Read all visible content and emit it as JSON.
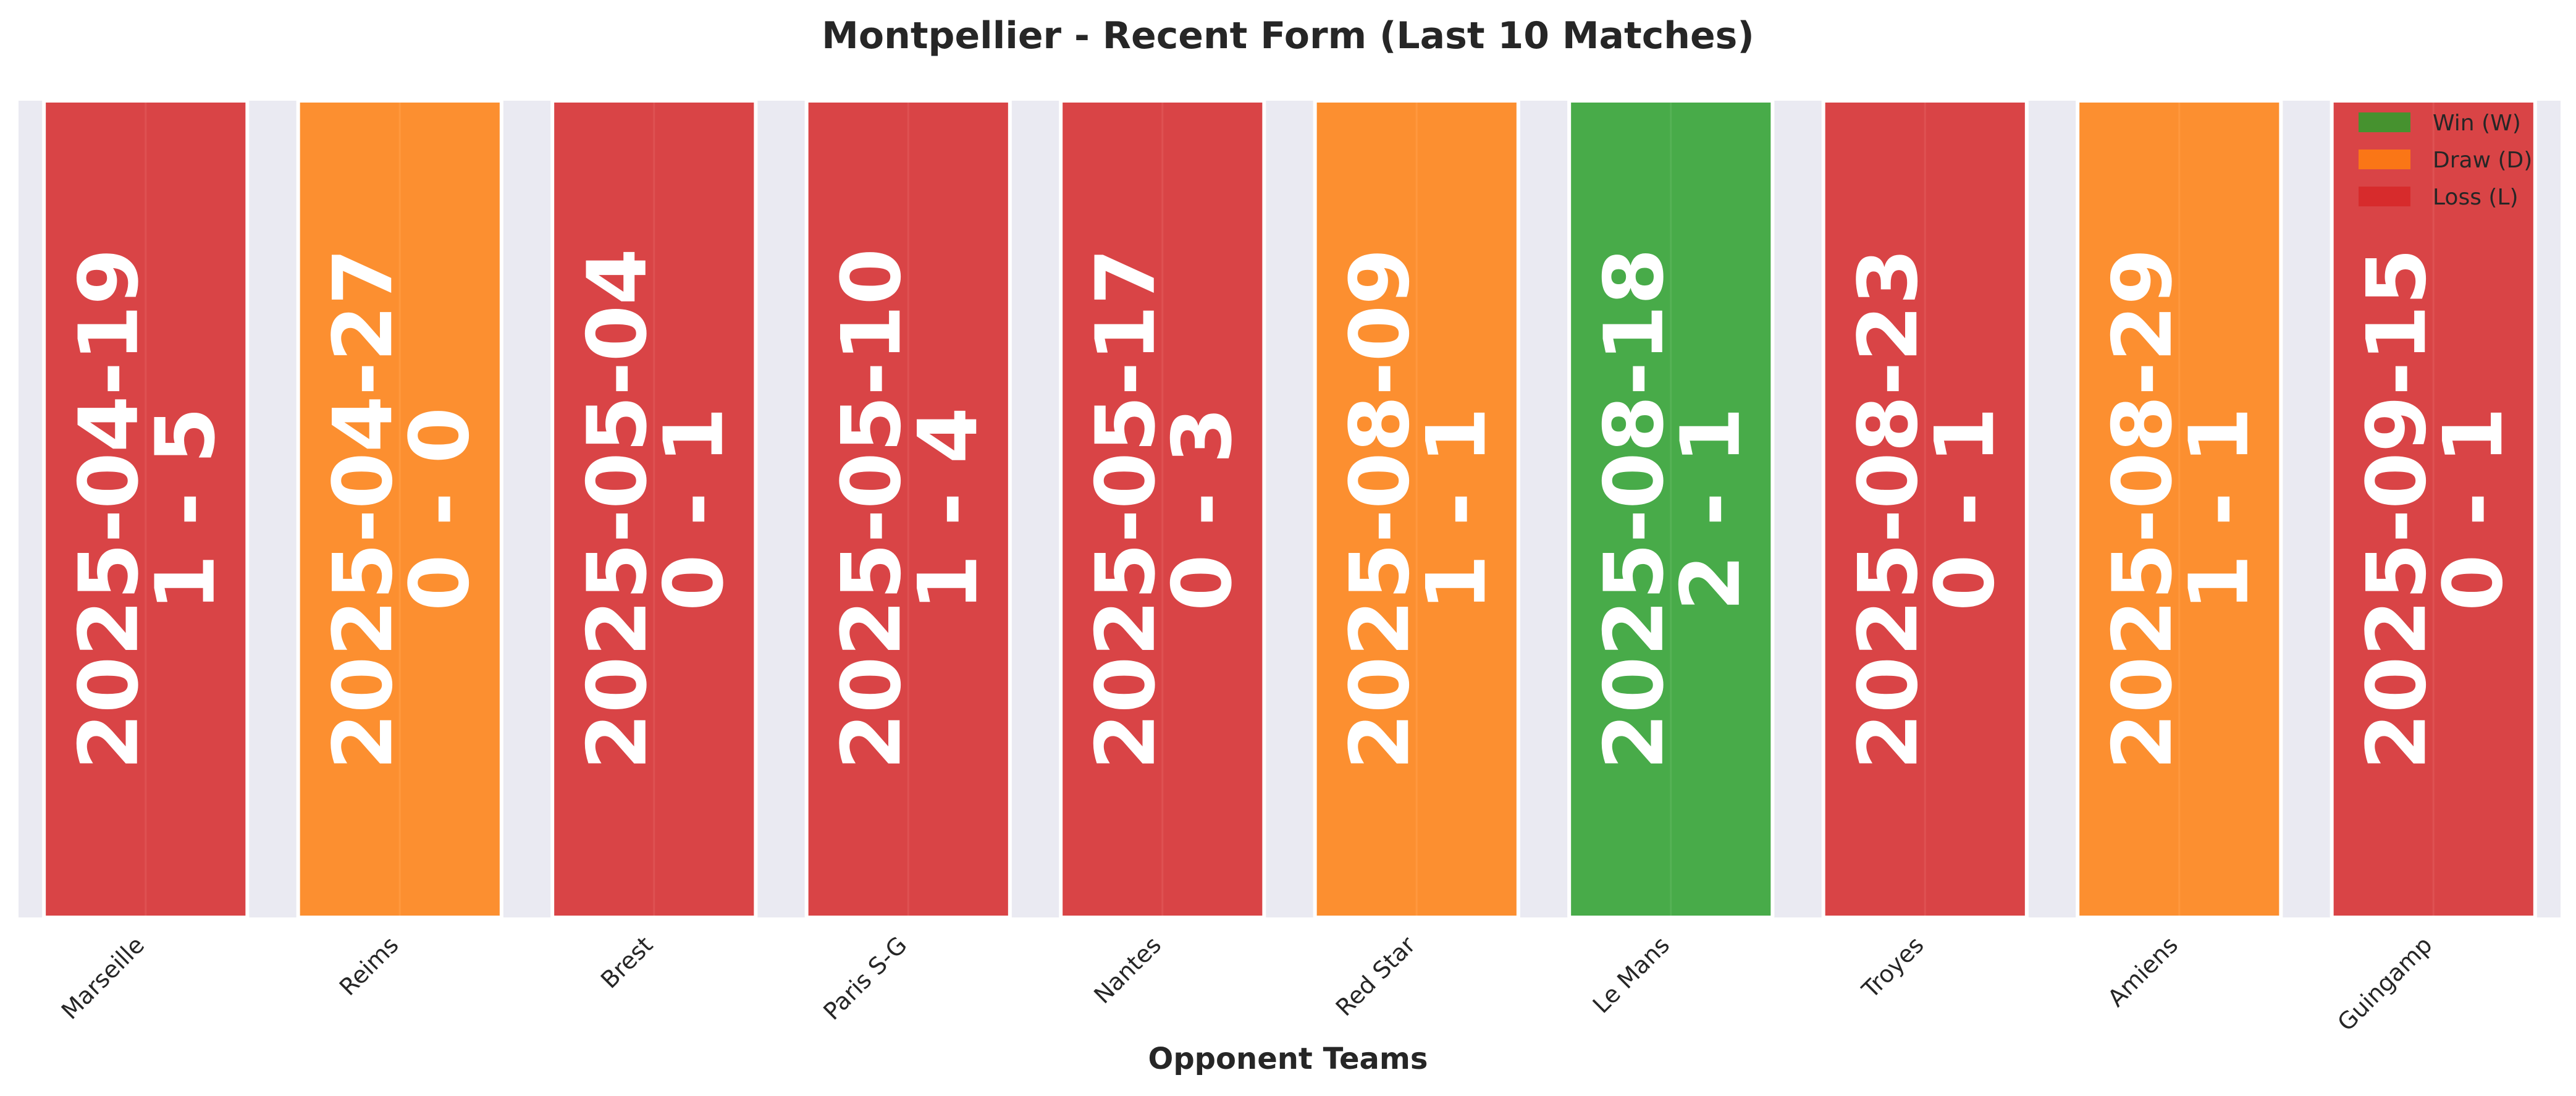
{
  "chart_data": {
    "type": "bar",
    "title": "Montpellier - Recent Form (Last 10 Matches)",
    "xlabel": "Opponent Teams",
    "ylabel": "",
    "ylim": [
      0,
      1
    ],
    "grid": true,
    "legend_position": "top-right",
    "categories": [
      "Marseille",
      "Reims",
      "Brest",
      "Paris S-G",
      "Nantes",
      "Red Star",
      "Le Mans",
      "Troyes",
      "Amiens",
      "Guingamp"
    ],
    "values": [
      1,
      1,
      1,
      1,
      1,
      1,
      1,
      1,
      1,
      1
    ],
    "results": [
      "L",
      "D",
      "L",
      "L",
      "L",
      "D",
      "W",
      "L",
      "D",
      "L"
    ],
    "dates": [
      "2025-04-19",
      "2025-04-27",
      "2025-05-04",
      "2025-05-10",
      "2025-05-17",
      "2025-08-09",
      "2025-08-18",
      "2025-08-23",
      "2025-08-29",
      "2025-09-15"
    ],
    "scores": [
      "1 - 5",
      "0 - 0",
      "0 - 1",
      "1 - 4",
      "0 - 3",
      "1 - 1",
      "2 - 1",
      "0 - 1",
      "1 - 1",
      "0 - 1"
    ],
    "legend": [
      {
        "key": "W",
        "label": "Win (W)",
        "color": "#2ca02c"
      },
      {
        "key": "D",
        "label": "Draw (D)",
        "color": "#ff7f0e"
      },
      {
        "key": "L",
        "label": "Loss (L)",
        "color": "#d62728"
      }
    ],
    "colors": {
      "W": "#2ca02c",
      "D": "#ff7f0e",
      "L": "#d62728",
      "plot_background": "#eaeaf2",
      "grid": "#ffffff"
    }
  }
}
